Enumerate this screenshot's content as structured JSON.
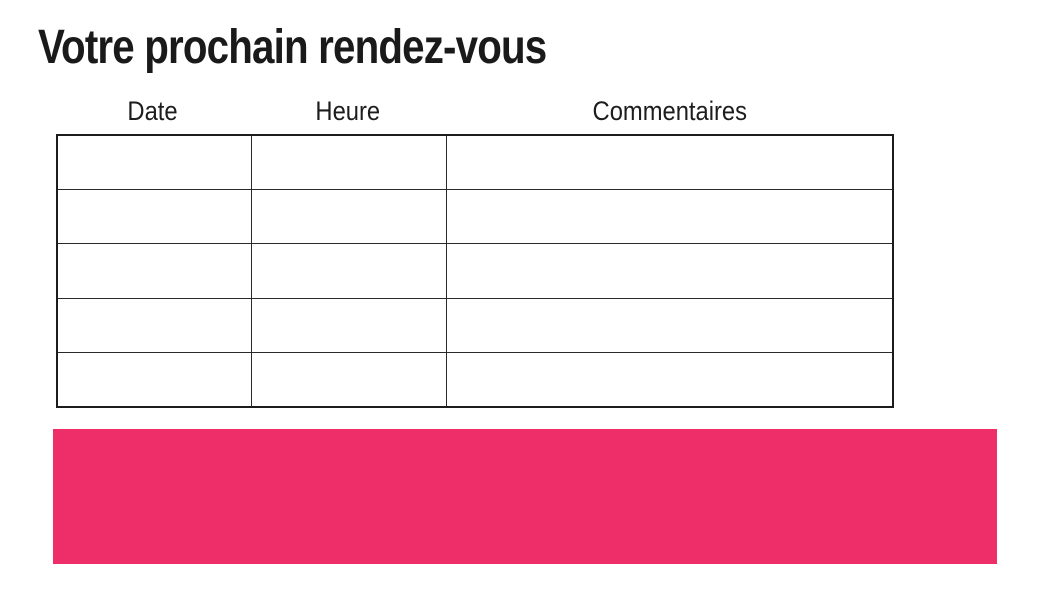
{
  "title": "Votre prochain rendez-vous",
  "table": {
    "columns": [
      {
        "label": "Date"
      },
      {
        "label": "Heure"
      },
      {
        "label": "Commentaires"
      }
    ],
    "rows": [
      [
        "",
        "",
        ""
      ],
      [
        "",
        "",
        ""
      ],
      [
        "",
        "",
        ""
      ],
      [
        "",
        "",
        ""
      ],
      [
        "",
        "",
        ""
      ]
    ]
  },
  "banner": {
    "label": ""
  },
  "colors": {
    "accent_pink": "#ED2E68",
    "text": "#1a1a1a",
    "table_border": "#1c1c1c",
    "background": "#ffffff"
  }
}
